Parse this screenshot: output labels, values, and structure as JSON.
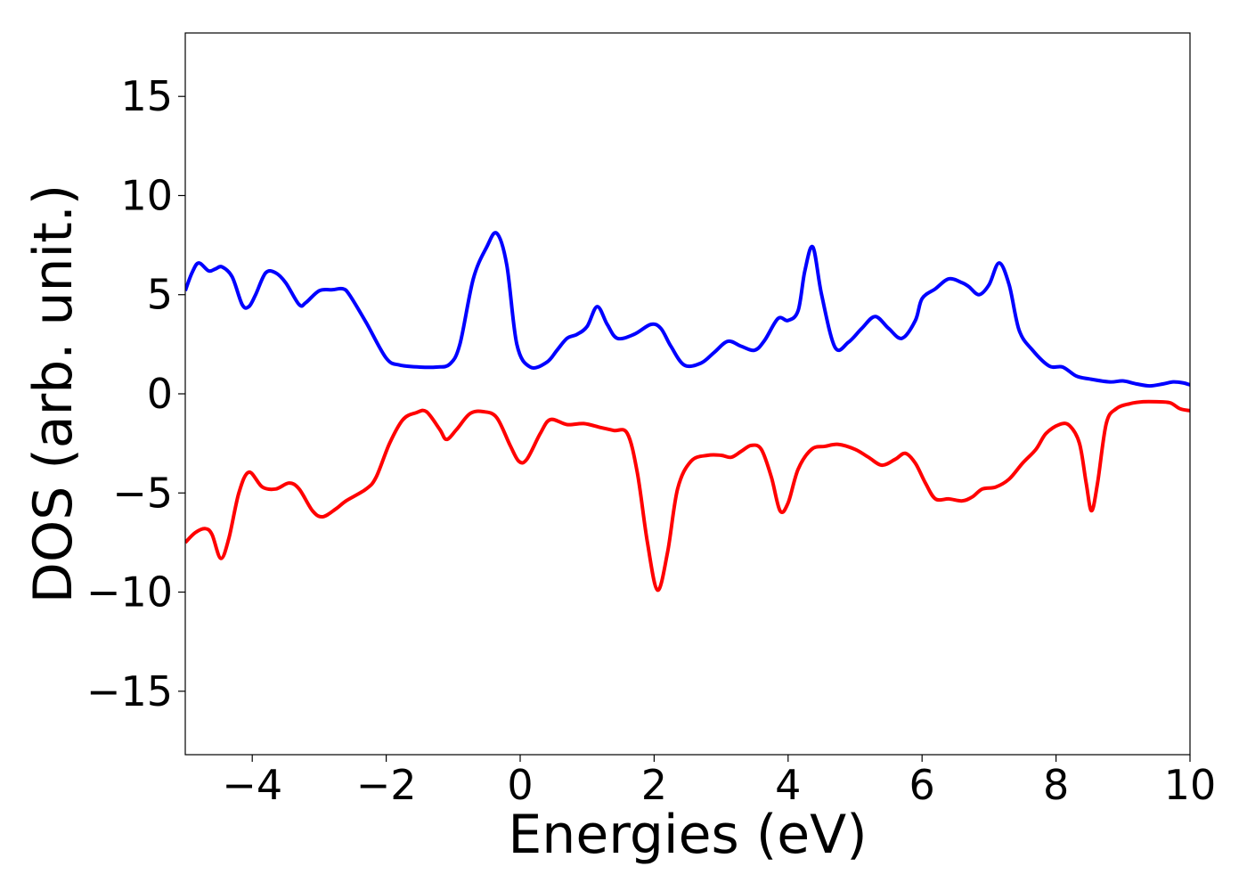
{
  "chart_data": {
    "type": "line",
    "xlabel": "Energies (eV)",
    "ylabel": "DOS (arb. unit.)",
    "xlim": [
      -5,
      10
    ],
    "ylim": [
      -18.2,
      18.2
    ],
    "xticks": [
      -4,
      -2,
      0,
      2,
      4,
      6,
      8,
      10
    ],
    "xtick_labels": [
      "−4",
      "−2",
      "0",
      "2",
      "4",
      "6",
      "8",
      "10"
    ],
    "yticks": [
      -15,
      -10,
      -5,
      0,
      5,
      10,
      15
    ],
    "ytick_labels": [
      "−15",
      "−10",
      "−5",
      "0",
      "5",
      "10",
      "15"
    ],
    "grid": false,
    "series": [
      {
        "color": "#0000ff",
        "points": [
          [
            -5.0,
            5.2
          ],
          [
            -4.9,
            6.1
          ],
          [
            -4.8,
            6.6
          ],
          [
            -4.65,
            6.2
          ],
          [
            -4.55,
            6.3
          ],
          [
            -4.45,
            6.4
          ],
          [
            -4.3,
            5.9
          ],
          [
            -4.15,
            4.5
          ],
          [
            -4.05,
            4.4
          ],
          [
            -3.95,
            5.0
          ],
          [
            -3.8,
            6.1
          ],
          [
            -3.65,
            6.1
          ],
          [
            -3.5,
            5.6
          ],
          [
            -3.3,
            4.5
          ],
          [
            -3.2,
            4.6
          ],
          [
            -3.0,
            5.2
          ],
          [
            -2.8,
            5.25
          ],
          [
            -2.65,
            5.3
          ],
          [
            -2.55,
            5.0
          ],
          [
            -2.3,
            3.6
          ],
          [
            -2.0,
            1.8
          ],
          [
            -1.8,
            1.45
          ],
          [
            -1.5,
            1.35
          ],
          [
            -1.25,
            1.35
          ],
          [
            -1.05,
            1.5
          ],
          [
            -0.9,
            2.5
          ],
          [
            -0.7,
            5.8
          ],
          [
            -0.5,
            7.4
          ],
          [
            -0.35,
            8.1
          ],
          [
            -0.2,
            6.5
          ],
          [
            -0.05,
            2.5
          ],
          [
            0.15,
            1.35
          ],
          [
            0.4,
            1.6
          ],
          [
            0.55,
            2.2
          ],
          [
            0.7,
            2.8
          ],
          [
            0.85,
            3.0
          ],
          [
            1.0,
            3.4
          ],
          [
            1.15,
            4.4
          ],
          [
            1.3,
            3.5
          ],
          [
            1.45,
            2.8
          ],
          [
            1.7,
            3.0
          ],
          [
            1.95,
            3.5
          ],
          [
            2.1,
            3.3
          ],
          [
            2.25,
            2.4
          ],
          [
            2.45,
            1.45
          ],
          [
            2.7,
            1.55
          ],
          [
            2.9,
            2.1
          ],
          [
            3.1,
            2.65
          ],
          [
            3.3,
            2.4
          ],
          [
            3.5,
            2.2
          ],
          [
            3.65,
            2.7
          ],
          [
            3.85,
            3.8
          ],
          [
            4.0,
            3.7
          ],
          [
            4.15,
            4.2
          ],
          [
            4.25,
            6.2
          ],
          [
            4.37,
            7.4
          ],
          [
            4.5,
            5.0
          ],
          [
            4.7,
            2.35
          ],
          [
            4.9,
            2.6
          ],
          [
            5.1,
            3.3
          ],
          [
            5.3,
            3.9
          ],
          [
            5.5,
            3.3
          ],
          [
            5.7,
            2.8
          ],
          [
            5.9,
            3.7
          ],
          [
            6.0,
            4.8
          ],
          [
            6.2,
            5.3
          ],
          [
            6.4,
            5.8
          ],
          [
            6.6,
            5.6
          ],
          [
            6.7,
            5.4
          ],
          [
            6.85,
            5.0
          ],
          [
            7.0,
            5.5
          ],
          [
            7.15,
            6.6
          ],
          [
            7.3,
            5.5
          ],
          [
            7.45,
            3.2
          ],
          [
            7.65,
            2.2
          ],
          [
            7.9,
            1.4
          ],
          [
            8.1,
            1.35
          ],
          [
            8.3,
            0.9
          ],
          [
            8.5,
            0.75
          ],
          [
            8.8,
            0.6
          ],
          [
            9.0,
            0.65
          ],
          [
            9.2,
            0.5
          ],
          [
            9.4,
            0.4
          ],
          [
            9.6,
            0.5
          ],
          [
            9.75,
            0.6
          ],
          [
            9.9,
            0.55
          ],
          [
            10.0,
            0.45
          ]
        ]
      },
      {
        "color": "#ff0000",
        "points": [
          [
            -5.0,
            -7.5
          ],
          [
            -4.85,
            -7.0
          ],
          [
            -4.7,
            -6.8
          ],
          [
            -4.6,
            -7.1
          ],
          [
            -4.47,
            -8.3
          ],
          [
            -4.35,
            -7.3
          ],
          [
            -4.2,
            -5.0
          ],
          [
            -4.05,
            -3.95
          ],
          [
            -3.85,
            -4.7
          ],
          [
            -3.65,
            -4.8
          ],
          [
            -3.45,
            -4.5
          ],
          [
            -3.3,
            -4.8
          ],
          [
            -3.1,
            -5.9
          ],
          [
            -2.95,
            -6.2
          ],
          [
            -2.75,
            -5.8
          ],
          [
            -2.6,
            -5.4
          ],
          [
            -2.3,
            -4.8
          ],
          [
            -2.15,
            -4.2
          ],
          [
            -1.95,
            -2.5
          ],
          [
            -1.75,
            -1.3
          ],
          [
            -1.55,
            -0.95
          ],
          [
            -1.4,
            -0.9
          ],
          [
            -1.2,
            -1.8
          ],
          [
            -1.1,
            -2.3
          ],
          [
            -0.95,
            -1.8
          ],
          [
            -0.75,
            -1.0
          ],
          [
            -0.55,
            -0.9
          ],
          [
            -0.35,
            -1.2
          ],
          [
            -0.15,
            -2.6
          ],
          [
            -0.02,
            -3.4
          ],
          [
            0.1,
            -3.3
          ],
          [
            0.3,
            -2.0
          ],
          [
            0.45,
            -1.3
          ],
          [
            0.7,
            -1.55
          ],
          [
            0.95,
            -1.5
          ],
          [
            1.2,
            -1.7
          ],
          [
            1.4,
            -1.85
          ],
          [
            1.6,
            -2.0
          ],
          [
            1.75,
            -4.0
          ],
          [
            1.9,
            -7.5
          ],
          [
            2.05,
            -9.9
          ],
          [
            2.2,
            -8.0
          ],
          [
            2.35,
            -4.8
          ],
          [
            2.55,
            -3.4
          ],
          [
            2.8,
            -3.1
          ],
          [
            3.0,
            -3.1
          ],
          [
            3.15,
            -3.2
          ],
          [
            3.3,
            -2.9
          ],
          [
            3.45,
            -2.6
          ],
          [
            3.6,
            -2.8
          ],
          [
            3.75,
            -4.2
          ],
          [
            3.88,
            -5.9
          ],
          [
            4.0,
            -5.5
          ],
          [
            4.15,
            -3.8
          ],
          [
            4.35,
            -2.8
          ],
          [
            4.55,
            -2.65
          ],
          [
            4.75,
            -2.55
          ],
          [
            5.0,
            -2.8
          ],
          [
            5.2,
            -3.2
          ],
          [
            5.4,
            -3.6
          ],
          [
            5.6,
            -3.3
          ],
          [
            5.75,
            -3.0
          ],
          [
            5.9,
            -3.5
          ],
          [
            6.05,
            -4.5
          ],
          [
            6.2,
            -5.3
          ],
          [
            6.4,
            -5.3
          ],
          [
            6.6,
            -5.4
          ],
          [
            6.75,
            -5.2
          ],
          [
            6.9,
            -4.8
          ],
          [
            7.1,
            -4.7
          ],
          [
            7.3,
            -4.3
          ],
          [
            7.5,
            -3.5
          ],
          [
            7.7,
            -2.8
          ],
          [
            7.85,
            -2.0
          ],
          [
            8.05,
            -1.55
          ],
          [
            8.2,
            -1.6
          ],
          [
            8.35,
            -2.5
          ],
          [
            8.45,
            -4.5
          ],
          [
            8.53,
            -5.9
          ],
          [
            8.62,
            -4.5
          ],
          [
            8.75,
            -1.5
          ],
          [
            8.9,
            -0.75
          ],
          [
            9.1,
            -0.5
          ],
          [
            9.3,
            -0.4
          ],
          [
            9.5,
            -0.4
          ],
          [
            9.7,
            -0.45
          ],
          [
            9.85,
            -0.75
          ],
          [
            10.0,
            -0.85
          ]
        ]
      }
    ]
  }
}
